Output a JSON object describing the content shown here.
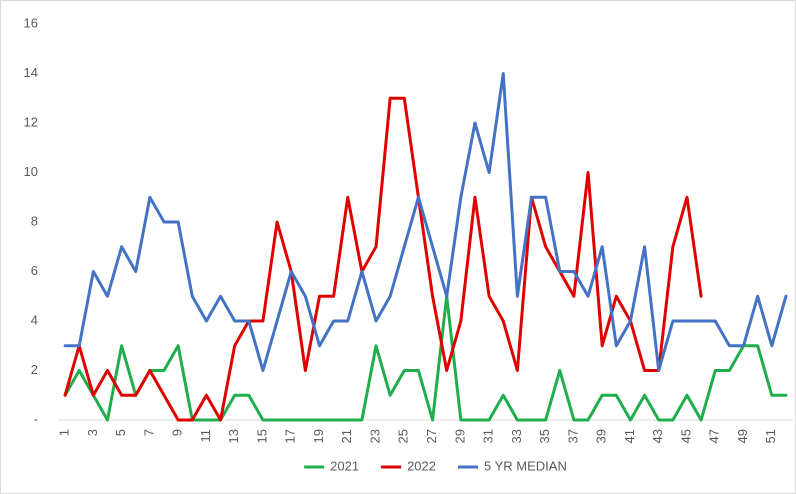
{
  "chart_data": {
    "type": "line",
    "categories": [
      "1",
      null,
      "3",
      null,
      "5",
      null,
      "7",
      null,
      "9",
      null,
      "11",
      null,
      "13",
      null,
      "15",
      null,
      "17",
      null,
      "19",
      null,
      "21",
      null,
      "23",
      null,
      "25",
      null,
      "27",
      null,
      "29",
      null,
      "31",
      null,
      "33",
      null,
      "35",
      null,
      "37",
      null,
      "39",
      null,
      "41",
      null,
      "43",
      null,
      "45",
      null,
      "47",
      null,
      "49",
      null,
      "51",
      null
    ],
    "series": [
      {
        "name": "2021",
        "color": "#1fae4b",
        "values": [
          1,
          2,
          1,
          0,
          3,
          1,
          2,
          2,
          3,
          0,
          0,
          0,
          1,
          1,
          0,
          0,
          0,
          0,
          0,
          0,
          0,
          0,
          3,
          1,
          2,
          2,
          0,
          5,
          0,
          0,
          0,
          1,
          0,
          0,
          0,
          2,
          0,
          0,
          1,
          1,
          0,
          1,
          0,
          0,
          1,
          0,
          2,
          2,
          3,
          3,
          1,
          1
        ]
      },
      {
        "name": "2022",
        "color": "#e00000",
        "values": [
          1,
          3,
          1,
          2,
          1,
          1,
          2,
          1,
          0,
          0,
          1,
          0,
          3,
          4,
          4,
          8,
          6,
          2,
          5,
          5,
          9,
          6,
          7,
          13,
          13,
          9,
          5,
          2,
          4,
          9,
          5,
          4,
          2,
          9,
          7,
          6,
          5,
          10,
          3,
          5,
          4,
          2,
          2,
          7,
          9,
          5,
          null,
          null,
          null,
          null,
          null,
          null
        ]
      },
      {
        "name": "5 YR MEDIAN",
        "color": "#4472c4",
        "values": [
          3,
          3,
          6,
          5,
          7,
          6,
          9,
          8,
          8,
          5,
          4,
          5,
          4,
          4,
          2,
          4,
          6,
          5,
          3,
          4,
          4,
          6,
          4,
          5,
          7,
          9,
          7,
          5,
          9,
          12,
          10,
          14,
          5,
          9,
          9,
          6,
          6,
          5,
          7,
          3,
          4,
          7,
          2,
          4,
          4,
          4,
          4,
          3,
          3,
          5,
          3,
          5
        ]
      }
    ],
    "ylim": [
      0,
      16
    ],
    "yticks": [
      {
        "value": 0,
        "label": "-"
      },
      2,
      4,
      6,
      8,
      10,
      12,
      14,
      16
    ],
    "grid": false,
    "legend": "bottom"
  }
}
